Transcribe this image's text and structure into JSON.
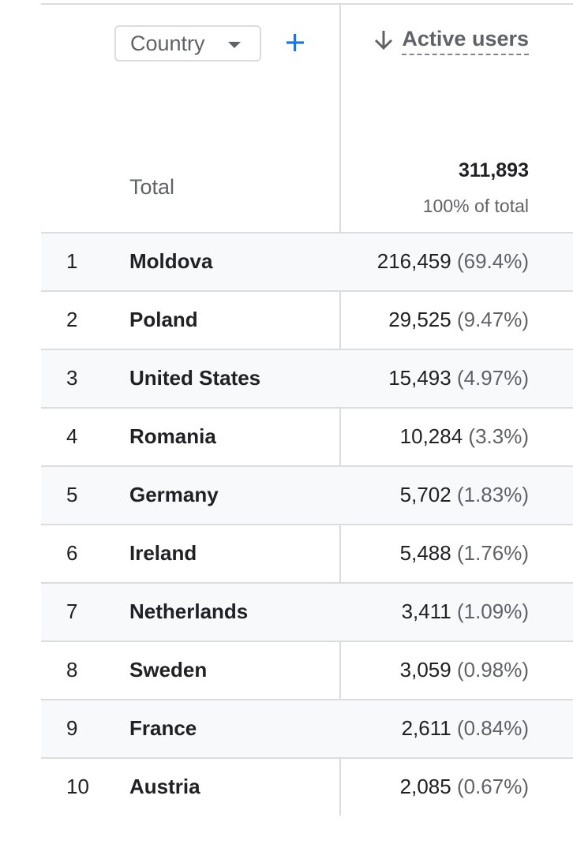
{
  "header": {
    "dimension_label": "Country",
    "metric_label": "Active users"
  },
  "total": {
    "label": "Total",
    "value": "311,893",
    "share": "100% of total"
  },
  "rows": [
    {
      "rank": "1",
      "country": "Moldova",
      "value": "216,459",
      "pct": "(69.4%)"
    },
    {
      "rank": "2",
      "country": "Poland",
      "value": "29,525",
      "pct": "(9.47%)"
    },
    {
      "rank": "3",
      "country": "United States",
      "value": "15,493",
      "pct": "(4.97%)"
    },
    {
      "rank": "4",
      "country": "Romania",
      "value": "10,284",
      "pct": "(3.3%)"
    },
    {
      "rank": "5",
      "country": "Germany",
      "value": "5,702",
      "pct": "(1.83%)"
    },
    {
      "rank": "6",
      "country": "Ireland",
      "value": "5,488",
      "pct": "(1.76%)"
    },
    {
      "rank": "7",
      "country": "Netherlands",
      "value": "3,411",
      "pct": "(1.09%)"
    },
    {
      "rank": "8",
      "country": "Sweden",
      "value": "3,059",
      "pct": "(0.98%)"
    },
    {
      "rank": "9",
      "country": "France",
      "value": "2,611",
      "pct": "(0.84%)"
    },
    {
      "rank": "10",
      "country": "Austria",
      "value": "2,085",
      "pct": "(0.67%)"
    }
  ],
  "colors": {
    "accent": "#1a73e8",
    "border": "#dadce0",
    "row_alt": "#f8f9fa",
    "muted_text": "#5f6368"
  },
  "icons": {
    "add": "plus-icon",
    "sort": "arrow-down-icon",
    "dropdown": "caret-down-icon"
  }
}
